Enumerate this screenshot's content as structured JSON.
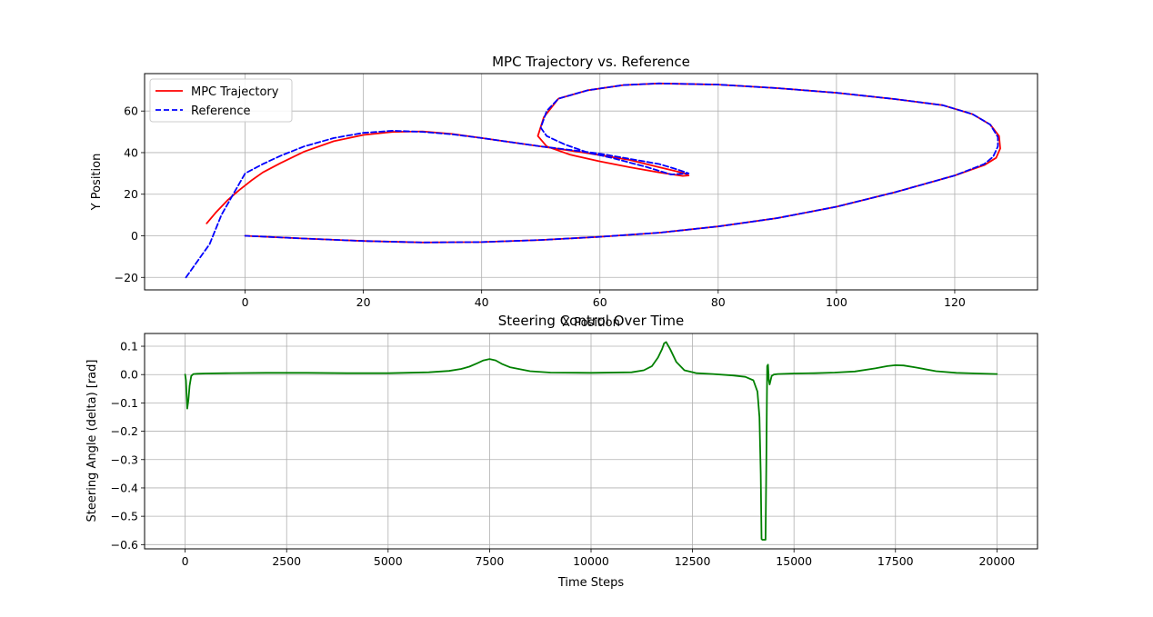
{
  "chart_data": [
    {
      "type": "line",
      "title": "MPC Trajectory vs. Reference",
      "xlabel": "X Position",
      "ylabel": "Y Position",
      "xlim": [
        -17,
        134
      ],
      "ylim": [
        -26,
        78
      ],
      "xticks": [
        0,
        20,
        40,
        60,
        80,
        100,
        120
      ],
      "yticks": [
        -20,
        0,
        20,
        40,
        60
      ],
      "grid": true,
      "legend_position": "top-left",
      "series": [
        {
          "name": "MPC Trajectory",
          "color": "#ff0000",
          "style": "solid",
          "x": [
            -6.5,
            -5,
            -3,
            -1,
            1,
            3,
            6,
            10,
            15,
            20,
            25,
            30,
            35,
            40,
            45,
            50,
            55,
            60,
            65,
            70,
            73,
            74.5,
            75,
            74,
            70,
            65,
            60,
            55,
            51,
            49.5,
            50.5,
            53,
            58,
            64,
            70,
            80,
            90,
            100,
            110,
            118,
            123,
            126,
            127.5,
            127.7,
            127,
            125,
            120,
            110,
            100,
            90,
            80,
            70,
            60,
            50,
            40,
            30,
            20,
            10,
            0
          ],
          "y": [
            6,
            11,
            17,
            22,
            26.5,
            30.5,
            35,
            40.5,
            45.5,
            48.5,
            50,
            50.2,
            49,
            47,
            45,
            43,
            41,
            38.8,
            36.5,
            33,
            31,
            29.8,
            29,
            28.8,
            30.5,
            33,
            35.8,
            39,
            43,
            48,
            57,
            66,
            70,
            72.5,
            73.3,
            72.7,
            71,
            68.8,
            65.7,
            62.8,
            58.5,
            53.5,
            48,
            42,
            37.5,
            34,
            29,
            21,
            14,
            8.5,
            4.5,
            1.5,
            -0.5,
            -2,
            -3,
            -3.2,
            -2.5,
            -1.3,
            0
          ]
        },
        {
          "name": "Reference",
          "color": "#0000ff",
          "style": "dashed",
          "x": [
            -10,
            -8,
            -6,
            -4,
            -2,
            0,
            3,
            6,
            10,
            15,
            20,
            25,
            30,
            35,
            40,
            45,
            50,
            55,
            60,
            65,
            70,
            73,
            75,
            72,
            68,
            62,
            58,
            54,
            51,
            50,
            51,
            53,
            58,
            64,
            70,
            80,
            90,
            100,
            110,
            118,
            123,
            126,
            127.3,
            127.3,
            126.5,
            125,
            120,
            110,
            100,
            90,
            80,
            70,
            60,
            50,
            40,
            30,
            20,
            10,
            0
          ],
          "y": [
            -20,
            -12,
            -4,
            10,
            20,
            30,
            34.5,
            38.5,
            43,
            47,
            49.5,
            50.5,
            50,
            48.8,
            47,
            45,
            43,
            41.3,
            39.5,
            37,
            34.5,
            32,
            30,
            29.5,
            33,
            37.5,
            40,
            44,
            48,
            52,
            60,
            66,
            70,
            72.5,
            73.3,
            72.7,
            71,
            68.8,
            65.7,
            62.8,
            58.5,
            53.5,
            47.5,
            43,
            38,
            34.5,
            29,
            21,
            14,
            8.5,
            4.5,
            1.5,
            -0.5,
            -2,
            -3,
            -3.2,
            -2.5,
            -1.3,
            0
          ]
        }
      ]
    },
    {
      "type": "line",
      "title": "Steering Control Over Time",
      "xlabel": "Time Steps",
      "ylabel": "Steering Angle (delta) [rad]",
      "xlim": [
        -1000,
        21000
      ],
      "ylim": [
        -0.615,
        0.145
      ],
      "xticks": [
        0,
        2500,
        5000,
        7500,
        10000,
        12500,
        15000,
        17500,
        20000
      ],
      "yticks": [
        0.1,
        0.0,
        -0.1,
        -0.2,
        -0.3,
        -0.4,
        -0.5,
        -0.6
      ],
      "ytick_labels": [
        "0.1",
        "0.0",
        "−0.1",
        "−0.2",
        "−0.3",
        "−0.4",
        "−0.5",
        "−0.6"
      ],
      "xtick_labels": [
        "0",
        "2500",
        "5000",
        "7500",
        "10000",
        "12500",
        "15000",
        "17500",
        "20000"
      ],
      "grid": true,
      "series": [
        {
          "color": "#008000",
          "style": "solid",
          "x": [
            0,
            20,
            50,
            80,
            110,
            150,
            200,
            300,
            500,
            1000,
            2000,
            3000,
            4000,
            5000,
            6000,
            6500,
            6800,
            7000,
            7200,
            7350,
            7500,
            7650,
            7800,
            8000,
            8500,
            9000,
            10000,
            11000,
            11300,
            11500,
            11650,
            11750,
            11800,
            11850,
            11950,
            12100,
            12300,
            12600,
            13000,
            13500,
            13800,
            14000,
            14100,
            14150,
            14180,
            14200,
            14220,
            14260,
            14300,
            14320,
            14340,
            14360,
            14380,
            14400,
            14450,
            14500,
            14600,
            15000,
            15500,
            16000,
            16500,
            17000,
            17300,
            17500,
            17700,
            18000,
            18500,
            19000,
            19500,
            20000
          ],
          "y": [
            0,
            -0.02,
            -0.12,
            -0.09,
            -0.04,
            -0.005,
            0.002,
            0.003,
            0.004,
            0.005,
            0.006,
            0.006,
            0.005,
            0.005,
            0.008,
            0.013,
            0.02,
            0.028,
            0.04,
            0.05,
            0.055,
            0.05,
            0.038,
            0.026,
            0.012,
            0.007,
            0.006,
            0.008,
            0.015,
            0.03,
            0.06,
            0.09,
            0.11,
            0.115,
            0.09,
            0.045,
            0.015,
            0.005,
            0.002,
            -0.003,
            -0.008,
            -0.02,
            -0.06,
            -0.15,
            -0.35,
            -0.58,
            -0.583,
            -0.583,
            -0.583,
            -0.3,
            0.03,
            0.035,
            -0.02,
            -0.035,
            -0.005,
            0.0,
            0.002,
            0.004,
            0.005,
            0.007,
            0.011,
            0.022,
            0.03,
            0.033,
            0.032,
            0.025,
            0.012,
            0.006,
            0.004,
            0.002
          ]
        }
      ]
    }
  ]
}
